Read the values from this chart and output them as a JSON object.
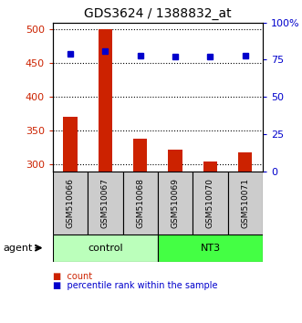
{
  "title": "GDS3624 / 1388832_at",
  "samples": [
    "GSM510066",
    "GSM510067",
    "GSM510068",
    "GSM510069",
    "GSM510070",
    "GSM510071"
  ],
  "counts": [
    370,
    500,
    338,
    322,
    304,
    318
  ],
  "percentiles": [
    79,
    81,
    78,
    77,
    77,
    78
  ],
  "groups": [
    "control",
    "control",
    "control",
    "NT3",
    "NT3",
    "NT3"
  ],
  "ctrl_color": "#bbffbb",
  "nt3_color": "#44ff44",
  "sample_box_color": "#cccccc",
  "ylim_left": [
    290,
    510
  ],
  "ylim_right": [
    0,
    100
  ],
  "yticks_left": [
    300,
    350,
    400,
    450,
    500
  ],
  "yticks_right": [
    0,
    25,
    50,
    75,
    100
  ],
  "ytick_labels_right": [
    "0",
    "25",
    "50",
    "75",
    "100%"
  ],
  "bar_color": "#cc2200",
  "dot_color": "#0000cc",
  "bg_color": "#ffffff",
  "left_axis_color": "#cc2200",
  "right_axis_color": "#0000cc",
  "bar_width": 0.4
}
